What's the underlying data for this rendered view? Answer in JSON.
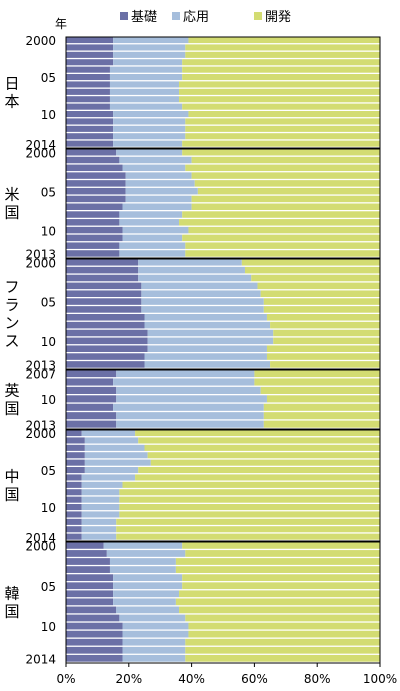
{
  "colors": {
    "basic": "#6b70a6",
    "applied": "#a6bedc",
    "development": "#d3dc72"
  },
  "chart_data": {
    "type": "bar",
    "orientation": "horizontal-stacked-100",
    "title": "",
    "year_axis_label": "年",
    "legend": {
      "placement": "top",
      "entries": [
        "基礎",
        "応用",
        "開発"
      ]
    },
    "xaxis": {
      "ticks": [
        "0%",
        "20%",
        "40%",
        "60%",
        "80%",
        "100%"
      ],
      "range": [
        0,
        100
      ]
    },
    "panels": [
      {
        "country_label": [
          "日",
          "本"
        ],
        "year_labels": [
          {
            "index": 0,
            "text": "2000"
          },
          {
            "index": 5,
            "text": "05"
          },
          {
            "index": 10,
            "text": "10"
          },
          {
            "index": 14,
            "text": "2014"
          }
        ],
        "years": [
          2000,
          2001,
          2002,
          2003,
          2004,
          2005,
          2006,
          2007,
          2008,
          2009,
          2010,
          2011,
          2012,
          2013,
          2014
        ],
        "basic": [
          15,
          15,
          15,
          15,
          14,
          14,
          14,
          14,
          14,
          14,
          15,
          15,
          15,
          15,
          15
        ],
        "applied": [
          24,
          23,
          23,
          22,
          23,
          23,
          22,
          22,
          22,
          23,
          24,
          23,
          23,
          23,
          22
        ]
      },
      {
        "country_label": [
          "米",
          "国"
        ],
        "year_labels": [
          {
            "index": 0,
            "text": "2000"
          },
          {
            "index": 5,
            "text": "05"
          },
          {
            "index": 10,
            "text": "10"
          },
          {
            "index": 13,
            "text": "2013"
          }
        ],
        "years": [
          2000,
          2001,
          2002,
          2003,
          2004,
          2005,
          2006,
          2007,
          2008,
          2009,
          2010,
          2011,
          2012,
          2013
        ],
        "basic": [
          16,
          17,
          18,
          19,
          19,
          19,
          19,
          18,
          17,
          17,
          18,
          18,
          17,
          17
        ],
        "applied": [
          21,
          23,
          20,
          21,
          22,
          23,
          21,
          22,
          20,
          19,
          21,
          19,
          21,
          21
        ]
      },
      {
        "country_label": [
          "フ",
          "ラ",
          "ン",
          "ス"
        ],
        "year_labels": [
          {
            "index": 0,
            "text": "2000"
          },
          {
            "index": 5,
            "text": "05"
          },
          {
            "index": 10,
            "text": "10"
          },
          {
            "index": 13,
            "text": "2013"
          }
        ],
        "years": [
          2000,
          2001,
          2002,
          2003,
          2004,
          2005,
          2006,
          2007,
          2008,
          2009,
          2010,
          2011,
          2012,
          2013
        ],
        "basic": [
          23,
          23,
          23,
          24,
          24,
          24,
          24,
          25,
          25,
          26,
          26,
          26,
          25,
          25
        ],
        "applied": [
          33,
          34,
          36,
          37,
          38,
          39,
          39,
          39,
          40,
          40,
          40,
          38,
          39,
          40
        ]
      },
      {
        "country_label": [
          "英",
          "国"
        ],
        "year_labels": [
          {
            "index": 0,
            "text": "2007"
          },
          {
            "index": 3,
            "text": "10"
          },
          {
            "index": 6,
            "text": "2013"
          }
        ],
        "years": [
          2007,
          2008,
          2009,
          2010,
          2011,
          2012,
          2013
        ],
        "basic": [
          16,
          15,
          16,
          16,
          15,
          16,
          16
        ],
        "applied": [
          44,
          45,
          46,
          48,
          48,
          47,
          47
        ]
      },
      {
        "country_label": [
          "中",
          "国"
        ],
        "year_labels": [
          {
            "index": 0,
            "text": "2000"
          },
          {
            "index": 5,
            "text": "05"
          },
          {
            "index": 10,
            "text": "10"
          },
          {
            "index": 14,
            "text": "2014"
          }
        ],
        "years": [
          2000,
          2001,
          2002,
          2003,
          2004,
          2005,
          2006,
          2007,
          2008,
          2009,
          2010,
          2011,
          2012,
          2013,
          2014
        ],
        "basic": [
          5,
          6,
          6,
          6,
          6,
          6,
          5,
          5,
          5,
          5,
          5,
          5,
          5,
          5,
          5
        ],
        "applied": [
          17,
          17,
          19,
          20,
          21,
          17,
          17,
          13,
          12,
          12,
          12,
          12,
          11,
          11,
          11
        ]
      },
      {
        "country_label": [
          "韓",
          "国"
        ],
        "year_labels": [
          {
            "index": 0,
            "text": "2000"
          },
          {
            "index": 5,
            "text": "05"
          },
          {
            "index": 10,
            "text": "10"
          },
          {
            "index": 14,
            "text": "2014"
          }
        ],
        "years": [
          2000,
          2001,
          2002,
          2003,
          2004,
          2005,
          2006,
          2007,
          2008,
          2009,
          2010,
          2011,
          2012,
          2013,
          2014
        ],
        "basic": [
          12,
          13,
          14,
          14,
          15,
          15,
          15,
          15,
          16,
          17,
          18,
          18,
          18,
          18,
          18
        ],
        "applied": [
          25,
          25,
          21,
          21,
          22,
          22,
          21,
          20,
          20,
          21,
          21,
          21,
          20,
          20,
          20
        ]
      }
    ]
  }
}
